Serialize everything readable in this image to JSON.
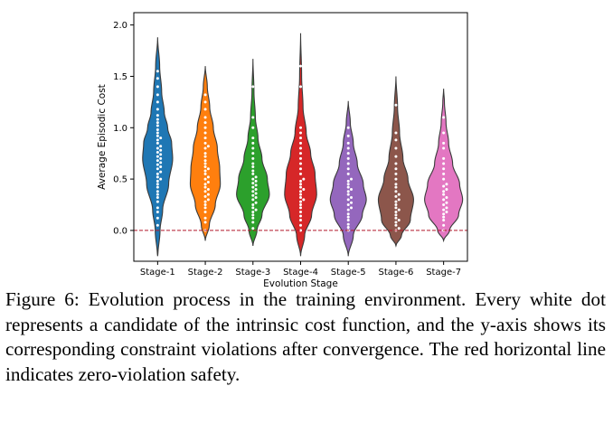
{
  "chart_data": {
    "type": "violin",
    "title": "",
    "xlabel": "Evolution Stage",
    "ylabel": "Average Episodic Cost",
    "ylim": [
      -0.3,
      2.12
    ],
    "yticks": [
      0.0,
      0.5,
      1.0,
      1.5,
      2.0
    ],
    "ytick_labels": [
      "0.0",
      "0.5",
      "1.0",
      "1.5",
      "2.0"
    ],
    "reference_line": {
      "y": 0.0,
      "style": "dashed",
      "color": "#b2182b"
    },
    "categories": [
      "Stage-1",
      "Stage-2",
      "Stage-3",
      "Stage-4",
      "Stage-5",
      "Stage-6",
      "Stage-7"
    ],
    "colors": [
      "#1f77b4",
      "#ff7f0e",
      "#2ca02c",
      "#d62728",
      "#9467bd",
      "#8c564b",
      "#e377c2"
    ],
    "violins": [
      {
        "min": -0.25,
        "max": 1.88,
        "density": [
          [
            -0.25,
            0.01
          ],
          [
            0.0,
            0.12
          ],
          [
            0.2,
            0.25
          ],
          [
            0.45,
            0.55
          ],
          [
            0.7,
            0.75
          ],
          [
            0.85,
            0.7
          ],
          [
            1.0,
            0.5
          ],
          [
            1.15,
            0.33
          ],
          [
            1.35,
            0.2
          ],
          [
            1.6,
            0.1
          ],
          [
            1.88,
            0.0
          ]
        ]
      },
      {
        "min": -0.1,
        "max": 1.6,
        "density": [
          [
            -0.1,
            0.0
          ],
          [
            0.05,
            0.2
          ],
          [
            0.25,
            0.5
          ],
          [
            0.45,
            0.75
          ],
          [
            0.6,
            0.72
          ],
          [
            0.8,
            0.6
          ],
          [
            1.0,
            0.4
          ],
          [
            1.2,
            0.22
          ],
          [
            1.4,
            0.1
          ],
          [
            1.6,
            0.0
          ]
        ]
      },
      {
        "min": -0.15,
        "max": 1.67,
        "density": [
          [
            -0.15,
            0.0
          ],
          [
            0.0,
            0.2
          ],
          [
            0.15,
            0.45
          ],
          [
            0.35,
            0.82
          ],
          [
            0.5,
            0.72
          ],
          [
            0.7,
            0.45
          ],
          [
            0.9,
            0.25
          ],
          [
            1.1,
            0.12
          ],
          [
            1.35,
            0.05
          ],
          [
            1.67,
            0.0
          ]
        ]
      },
      {
        "min": -0.25,
        "max": 1.92,
        "density": [
          [
            -0.25,
            0.0
          ],
          [
            -0.05,
            0.2
          ],
          [
            0.15,
            0.55
          ],
          [
            0.35,
            0.8
          ],
          [
            0.55,
            0.72
          ],
          [
            0.75,
            0.5
          ],
          [
            0.95,
            0.28
          ],
          [
            1.2,
            0.12
          ],
          [
            1.5,
            0.05
          ],
          [
            1.92,
            0.0
          ]
        ]
      },
      {
        "min": -0.25,
        "max": 1.26,
        "density": [
          [
            -0.25,
            0.0
          ],
          [
            -0.05,
            0.25
          ],
          [
            0.15,
            0.7
          ],
          [
            0.3,
            0.9
          ],
          [
            0.45,
            0.75
          ],
          [
            0.65,
            0.45
          ],
          [
            0.85,
            0.25
          ],
          [
            1.05,
            0.1
          ],
          [
            1.26,
            0.0
          ]
        ]
      },
      {
        "min": -0.15,
        "max": 1.5,
        "density": [
          [
            -0.15,
            0.0
          ],
          [
            -0.05,
            0.28
          ],
          [
            0.1,
            0.72
          ],
          [
            0.3,
            0.88
          ],
          [
            0.5,
            0.6
          ],
          [
            0.7,
            0.35
          ],
          [
            0.95,
            0.18
          ],
          [
            1.2,
            0.08
          ],
          [
            1.5,
            0.0
          ]
        ]
      },
      {
        "min": -0.1,
        "max": 1.38,
        "density": [
          [
            -0.1,
            0.0
          ],
          [
            0.0,
            0.3
          ],
          [
            0.15,
            0.75
          ],
          [
            0.3,
            0.95
          ],
          [
            0.45,
            0.8
          ],
          [
            0.65,
            0.45
          ],
          [
            0.85,
            0.25
          ],
          [
            1.05,
            0.12
          ],
          [
            1.25,
            0.04
          ],
          [
            1.38,
            0.0
          ]
        ]
      }
    ],
    "points": [
      [
        0.05,
        0.12,
        0.18,
        0.22,
        0.28,
        0.32,
        0.35,
        0.38,
        0.42,
        0.45,
        0.48,
        0.5,
        0.52,
        0.55,
        0.57,
        0.6,
        0.62,
        0.64,
        0.66,
        0.68,
        0.7,
        0.72,
        0.74,
        0.76,
        0.78,
        0.8,
        0.82,
        0.85,
        0.88,
        0.9,
        0.92,
        0.95,
        0.98,
        1.02,
        1.05,
        1.08,
        1.12,
        1.18,
        1.25,
        1.32,
        1.4,
        1.48,
        1.55
      ],
      [
        0.0,
        0.08,
        0.12,
        0.18,
        0.22,
        0.25,
        0.28,
        0.3,
        0.33,
        0.35,
        0.38,
        0.4,
        0.42,
        0.45,
        0.47,
        0.5,
        0.52,
        0.55,
        0.58,
        0.6,
        0.62,
        0.65,
        0.68,
        0.72,
        0.75,
        0.8,
        0.82,
        0.85,
        0.9,
        0.95,
        1.0,
        1.05,
        1.1,
        1.18,
        1.25,
        1.32
      ],
      [
        0.02,
        0.08,
        0.12,
        0.15,
        0.18,
        0.2,
        0.22,
        0.25,
        0.27,
        0.3,
        0.32,
        0.34,
        0.36,
        0.38,
        0.4,
        0.42,
        0.44,
        0.46,
        0.48,
        0.5,
        0.52,
        0.55,
        0.58,
        0.62,
        0.65,
        0.7,
        0.75,
        0.8,
        0.85,
        0.9,
        1.0,
        1.1,
        1.4
      ],
      [
        0.0,
        0.05,
        0.1,
        0.14,
        0.18,
        0.22,
        0.25,
        0.28,
        0.3,
        0.32,
        0.35,
        0.38,
        0.4,
        0.42,
        0.45,
        0.48,
        0.5,
        0.55,
        0.6,
        0.65,
        0.7,
        0.75,
        0.8,
        0.85,
        0.9,
        0.95,
        1.0,
        1.4,
        1.6
      ],
      [
        0.0,
        0.03,
        0.06,
        0.1,
        0.13,
        0.16,
        0.2,
        0.22,
        0.25,
        0.27,
        0.3,
        0.32,
        0.35,
        0.38,
        0.4,
        0.42,
        0.45,
        0.48,
        0.5,
        0.55,
        0.6,
        0.65,
        0.7,
        0.75,
        0.8,
        0.85,
        0.92,
        1.0
      ],
      [
        0.0,
        0.02,
        0.05,
        0.08,
        0.1,
        0.12,
        0.15,
        0.18,
        0.2,
        0.22,
        0.25,
        0.28,
        0.3,
        0.33,
        0.35,
        0.38,
        0.42,
        0.45,
        0.5,
        0.55,
        0.6,
        0.65,
        0.72,
        0.8,
        0.88,
        0.95,
        1.22
      ],
      [
        0.0,
        0.05,
        0.1,
        0.13,
        0.16,
        0.18,
        0.2,
        0.22,
        0.25,
        0.27,
        0.3,
        0.32,
        0.35,
        0.38,
        0.4,
        0.43,
        0.45,
        0.5,
        0.55,
        0.6,
        0.65,
        0.7,
        0.8,
        0.85,
        0.95,
        1.1
      ]
    ]
  },
  "caption": "Figure 6: Evolution process in the training environment. Ev­ery white dot represents a candidate of the intrinsic cost function, and the y-axis shows its corresponding constraint violations after convergence. The red horizontal line indi­cates zero-violation safety."
}
